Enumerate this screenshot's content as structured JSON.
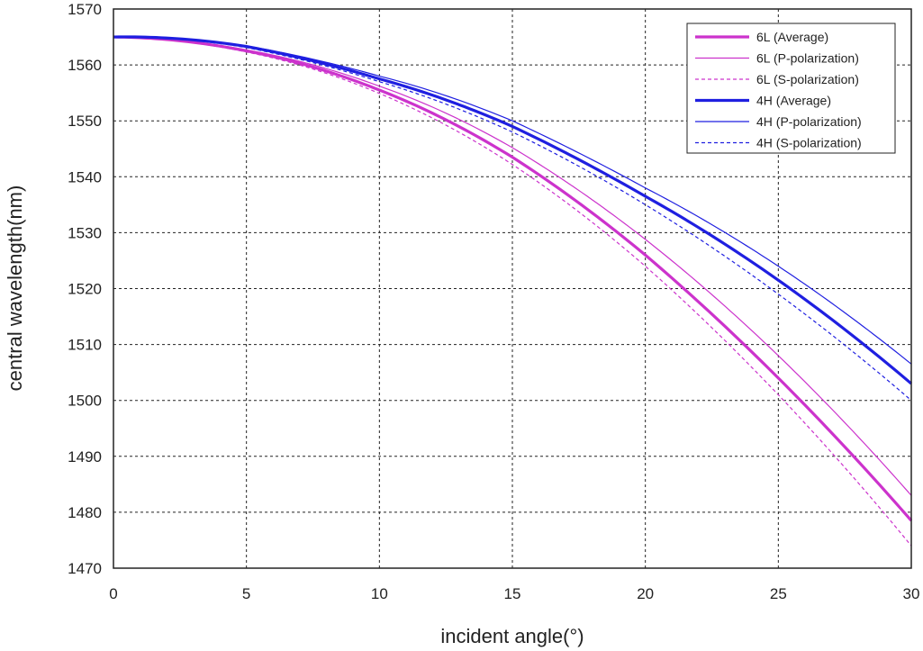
{
  "chart_data": {
    "type": "line",
    "xlabel": "incident angle(°)",
    "ylabel": "central wavelength(nm)",
    "xlim": [
      0,
      30
    ],
    "ylim": [
      1470,
      1570
    ],
    "xticks": [
      0,
      5,
      10,
      15,
      20,
      25,
      30
    ],
    "yticks": [
      1470,
      1480,
      1490,
      1500,
      1510,
      1520,
      1530,
      1540,
      1550,
      1560,
      1570
    ],
    "grid": true,
    "legend_position": "top-right",
    "x": [
      0,
      5,
      10,
      15,
      20,
      25,
      30
    ],
    "series": [
      {
        "name": "6L (Average)",
        "color": "#cc33cc",
        "style": "solid",
        "weight": "bold",
        "values": [
          1565,
          1562.5,
          1555.5,
          1543.5,
          1526,
          1504,
          1478.5
        ]
      },
      {
        "name": "6L (P-polarization)",
        "color": "#cc33cc",
        "style": "solid",
        "weight": "thin",
        "values": [
          1565,
          1562.7,
          1556.2,
          1545.2,
          1528.8,
          1508,
          1483
        ]
      },
      {
        "name": "6L (S-polarization)",
        "color": "#cc33cc",
        "style": "dashed",
        "weight": "thin",
        "values": [
          1565,
          1562.3,
          1554.9,
          1542.2,
          1524,
          1501,
          1474
        ]
      },
      {
        "name": "4H (Average)",
        "color": "#1f1fe0",
        "style": "solid",
        "weight": "bold",
        "values": [
          1565,
          1563.3,
          1557.5,
          1549,
          1536.5,
          1521.5,
          1503
        ]
      },
      {
        "name": "4H (P-polarization)",
        "color": "#1f1fe0",
        "style": "solid",
        "weight": "thin",
        "values": [
          1565,
          1563.4,
          1558,
          1550,
          1538,
          1524,
          1506.5
        ]
      },
      {
        "name": "4H (S-polarization)",
        "color": "#1f1fe0",
        "style": "dashed",
        "weight": "thin",
        "values": [
          1565,
          1563.1,
          1557,
          1548,
          1535,
          1519,
          1500
        ]
      }
    ]
  }
}
